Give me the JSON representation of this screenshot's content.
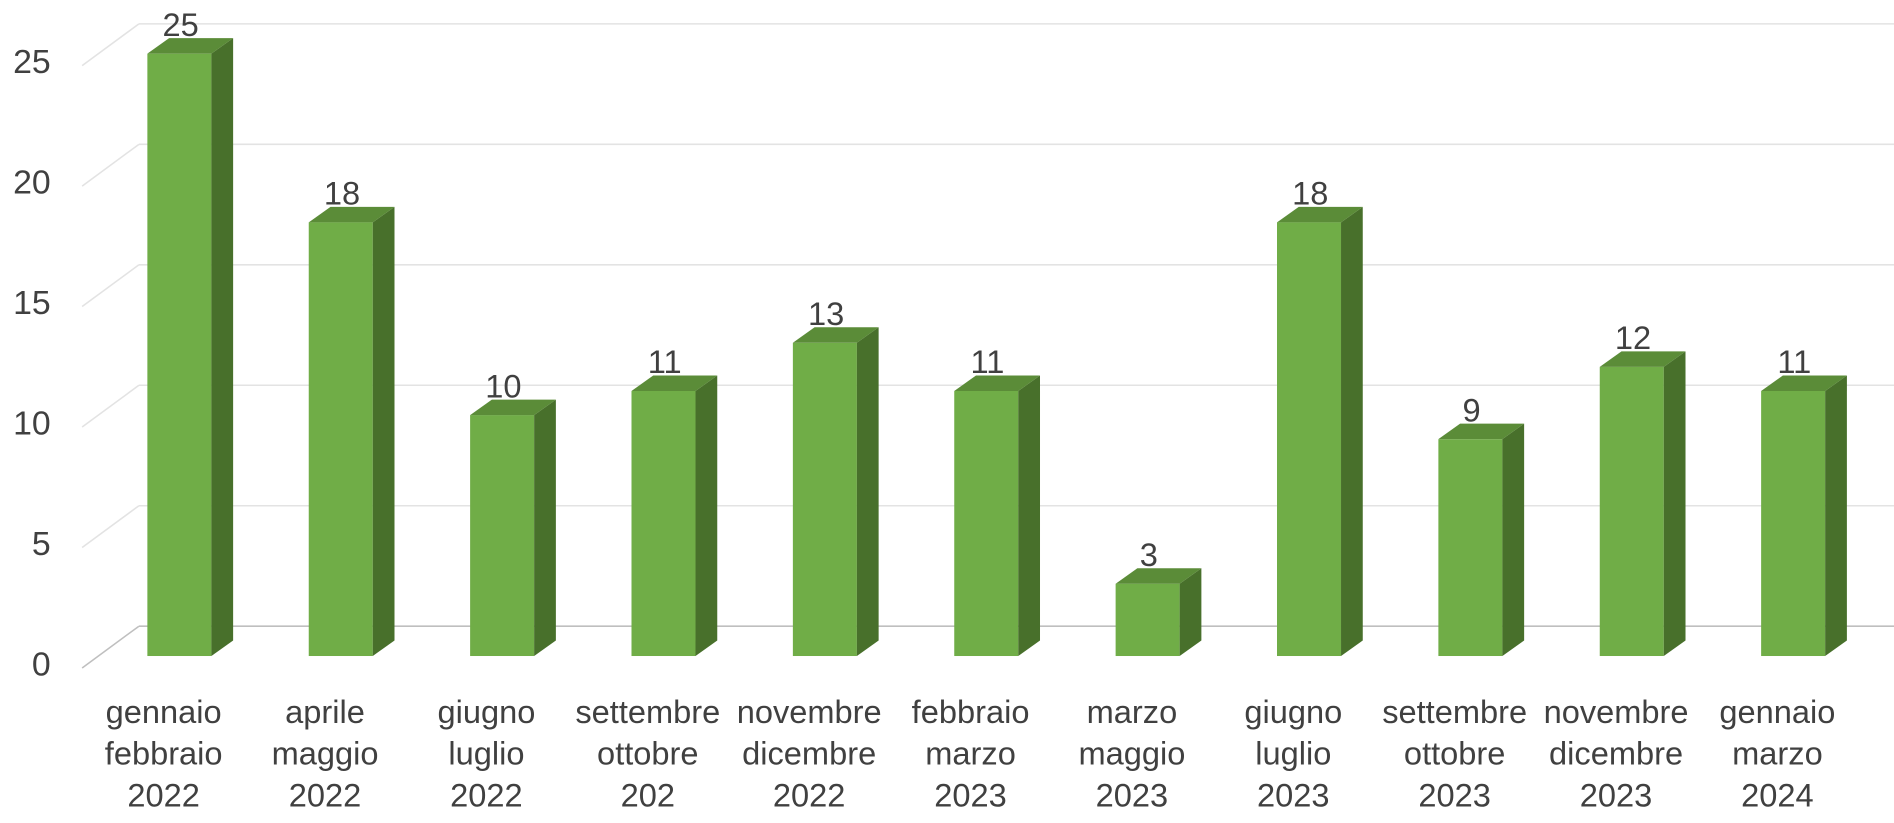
{
  "chart_data": {
    "type": "bar3d",
    "categories": [
      [
        "gennaio",
        "febbraio",
        "2022"
      ],
      [
        "aprile",
        "maggio",
        "2022"
      ],
      [
        "giugno",
        "luglio",
        "2022"
      ],
      [
        "settembre",
        "ottobre",
        "202"
      ],
      [
        "novembre",
        "dicembre",
        "2022"
      ],
      [
        "febbraio",
        "marzo",
        "2023"
      ],
      [
        "marzo",
        "maggio",
        "2023"
      ],
      [
        "giugno",
        "luglio",
        "2023"
      ],
      [
        "settembre",
        "ottobre",
        "2023"
      ],
      [
        "novembre",
        "dicembre",
        "2023"
      ],
      [
        "gennaio",
        "marzo",
        "2024"
      ]
    ],
    "values": [
      25,
      18,
      10,
      11,
      13,
      11,
      3,
      18,
      9,
      12,
      11
    ],
    "color": "#70ad47",
    "ylim": [
      0,
      25
    ],
    "yticks": [
      0,
      5,
      10,
      15,
      20,
      25
    ],
    "grid": true
  }
}
